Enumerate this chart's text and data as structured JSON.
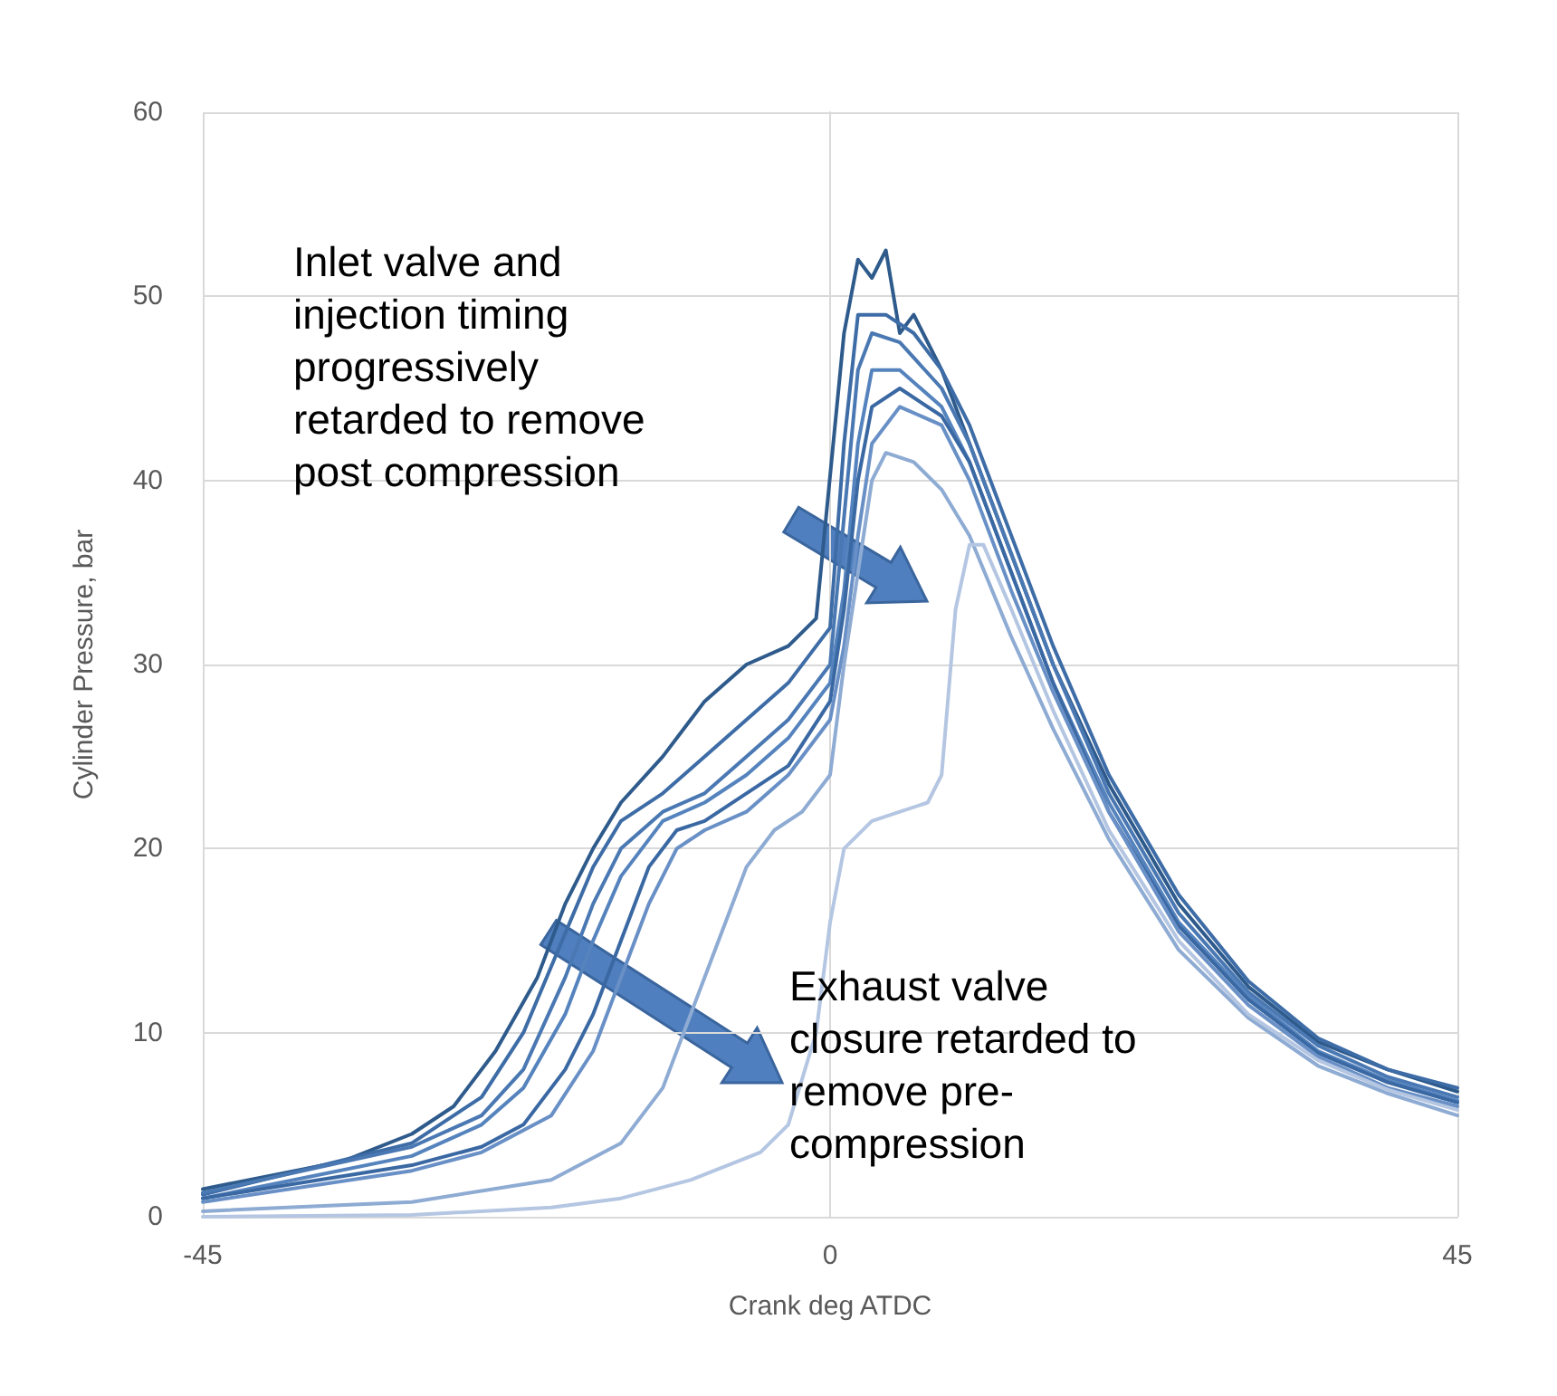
{
  "chart_data": {
    "type": "line",
    "xlabel": "Crank deg ATDC",
    "ylabel": "Cylinder Pressure, bar",
    "annotations": [
      "Inlet valve and\ninjection timing\nprogressively\nretarded to remove\npost compression",
      "Exhaust valve\nclosure retarded to\nremove pre-\ncompression"
    ],
    "xlim": [
      -45,
      45
    ],
    "xticks": [
      -45,
      0,
      45
    ],
    "ylim": [
      0,
      60
    ],
    "yticks": [
      0,
      10,
      20,
      30,
      40,
      50,
      60
    ],
    "grid": true,
    "marker": "none",
    "line_style": "solid",
    "series": [
      {
        "color": "#2e5b8c",
        "x": [
          -45,
          -35,
          -30,
          -27,
          -24,
          -21,
          -19,
          -17,
          -15,
          -12,
          -9,
          -6,
          -3,
          -1,
          1,
          2,
          3,
          4,
          5,
          6,
          8,
          10,
          13,
          16,
          20,
          25,
          30,
          35,
          40,
          45
        ],
        "values": [
          1.5,
          3,
          4.5,
          6,
          9,
          13,
          17,
          20,
          22.5,
          25,
          28,
          30,
          31,
          32.5,
          48,
          52,
          51,
          52.5,
          48,
          49,
          46,
          42,
          36,
          30,
          23.5,
          17,
          12.5,
          9.5,
          8,
          6.8
        ]
      },
      {
        "color": "#3d6ca6",
        "x": [
          -45,
          -30,
          -25,
          -22,
          -17,
          -15,
          -12,
          -9,
          -6,
          -3,
          0,
          1,
          2,
          4,
          6,
          8,
          10,
          13,
          16,
          20,
          25,
          30,
          35,
          40,
          45
        ],
        "values": [
          1.2,
          4,
          6.5,
          10,
          19,
          21.5,
          23,
          25,
          27,
          29,
          32,
          42,
          49,
          49,
          48,
          46,
          43,
          37,
          31,
          24,
          17.5,
          12.8,
          9.7,
          8,
          7
        ]
      },
      {
        "color": "#4a78b3",
        "x": [
          -45,
          -30,
          -25,
          -22,
          -19,
          -17,
          -15,
          -12,
          -9,
          -6,
          -3,
          0,
          1,
          2,
          3,
          5,
          8,
          10,
          13,
          16,
          20,
          25,
          30,
          35,
          40,
          45
        ],
        "values": [
          1.3,
          3.8,
          5.5,
          8,
          13,
          17,
          20,
          22,
          23,
          25,
          27,
          30,
          38,
          46,
          48,
          47.5,
          45,
          42,
          36,
          30,
          23,
          16.5,
          12.2,
          9.3,
          7.6,
          6.5
        ]
      },
      {
        "color": "#5583bd",
        "x": [
          -45,
          -30,
          -25,
          -22,
          -19,
          -17,
          -15,
          -12,
          -9,
          -6,
          -3,
          0,
          1,
          2,
          3,
          5,
          8,
          10,
          13,
          16,
          20,
          25,
          30,
          35,
          40,
          45
        ],
        "values": [
          1,
          3.3,
          5,
          7,
          11,
          15,
          18.5,
          21.5,
          22.5,
          24,
          26,
          29,
          34,
          42,
          46,
          46,
          44,
          41,
          35,
          29,
          22.5,
          16,
          12,
          9,
          7.4,
          6.3
        ]
      },
      {
        "color": "#3a68a3",
        "x": [
          -45,
          -30,
          -25,
          -22,
          -19,
          -17,
          -15,
          -13,
          -11,
          -9,
          -6,
          -3,
          0,
          1,
          2,
          3,
          5,
          8,
          10,
          13,
          16,
          20,
          25,
          30,
          35,
          40,
          45
        ],
        "values": [
          1,
          2.8,
          3.8,
          5,
          8,
          11,
          15,
          19,
          21,
          21.5,
          23,
          24.5,
          28,
          33,
          40,
          44,
          45,
          43.5,
          41,
          35,
          29,
          22,
          15.8,
          11.8,
          8.9,
          7.3,
          6.2
        ]
      },
      {
        "color": "#6990c6",
        "x": [
          -45,
          -30,
          -25,
          -20,
          -17,
          -13,
          -11,
          -9,
          -6,
          -3,
          0,
          1,
          2,
          3,
          5,
          8,
          10,
          13,
          16,
          20,
          25,
          30,
          35,
          40,
          45
        ],
        "values": [
          0.8,
          2.5,
          3.5,
          5.5,
          9,
          17,
          20,
          21,
          22,
          24,
          27,
          31,
          37,
          42,
          44,
          43,
          40,
          34,
          28.5,
          22,
          15.5,
          11.5,
          8.7,
          7,
          6
        ]
      },
      {
        "color": "#8eabd3",
        "x": [
          -45,
          -30,
          -20,
          -15,
          -12,
          -8,
          -6,
          -4,
          -2,
          0,
          1,
          3,
          4,
          6,
          8,
          10,
          13,
          16,
          20,
          25,
          30,
          35,
          40,
          45
        ],
        "values": [
          0.3,
          0.8,
          2,
          4,
          7,
          15,
          19,
          21,
          22,
          24,
          30,
          40,
          41.5,
          41,
          39.5,
          37,
          31.5,
          26.5,
          20.5,
          14.5,
          10.8,
          8.2,
          6.7,
          5.5
        ]
      },
      {
        "color": "#b4c6e2",
        "x": [
          -45,
          -30,
          -20,
          -15,
          -10,
          -5,
          -3,
          -1,
          0,
          1,
          3,
          5,
          7,
          8,
          9,
          10,
          11,
          13,
          16,
          20,
          25,
          30,
          35,
          40,
          45
        ],
        "values": [
          0,
          0.1,
          0.5,
          1,
          2,
          3.5,
          5,
          10,
          16,
          20,
          21.5,
          22,
          22.5,
          24,
          33,
          36.5,
          36.5,
          33,
          27.5,
          21,
          15,
          11,
          8.5,
          6.9,
          5.8
        ]
      }
    ]
  }
}
